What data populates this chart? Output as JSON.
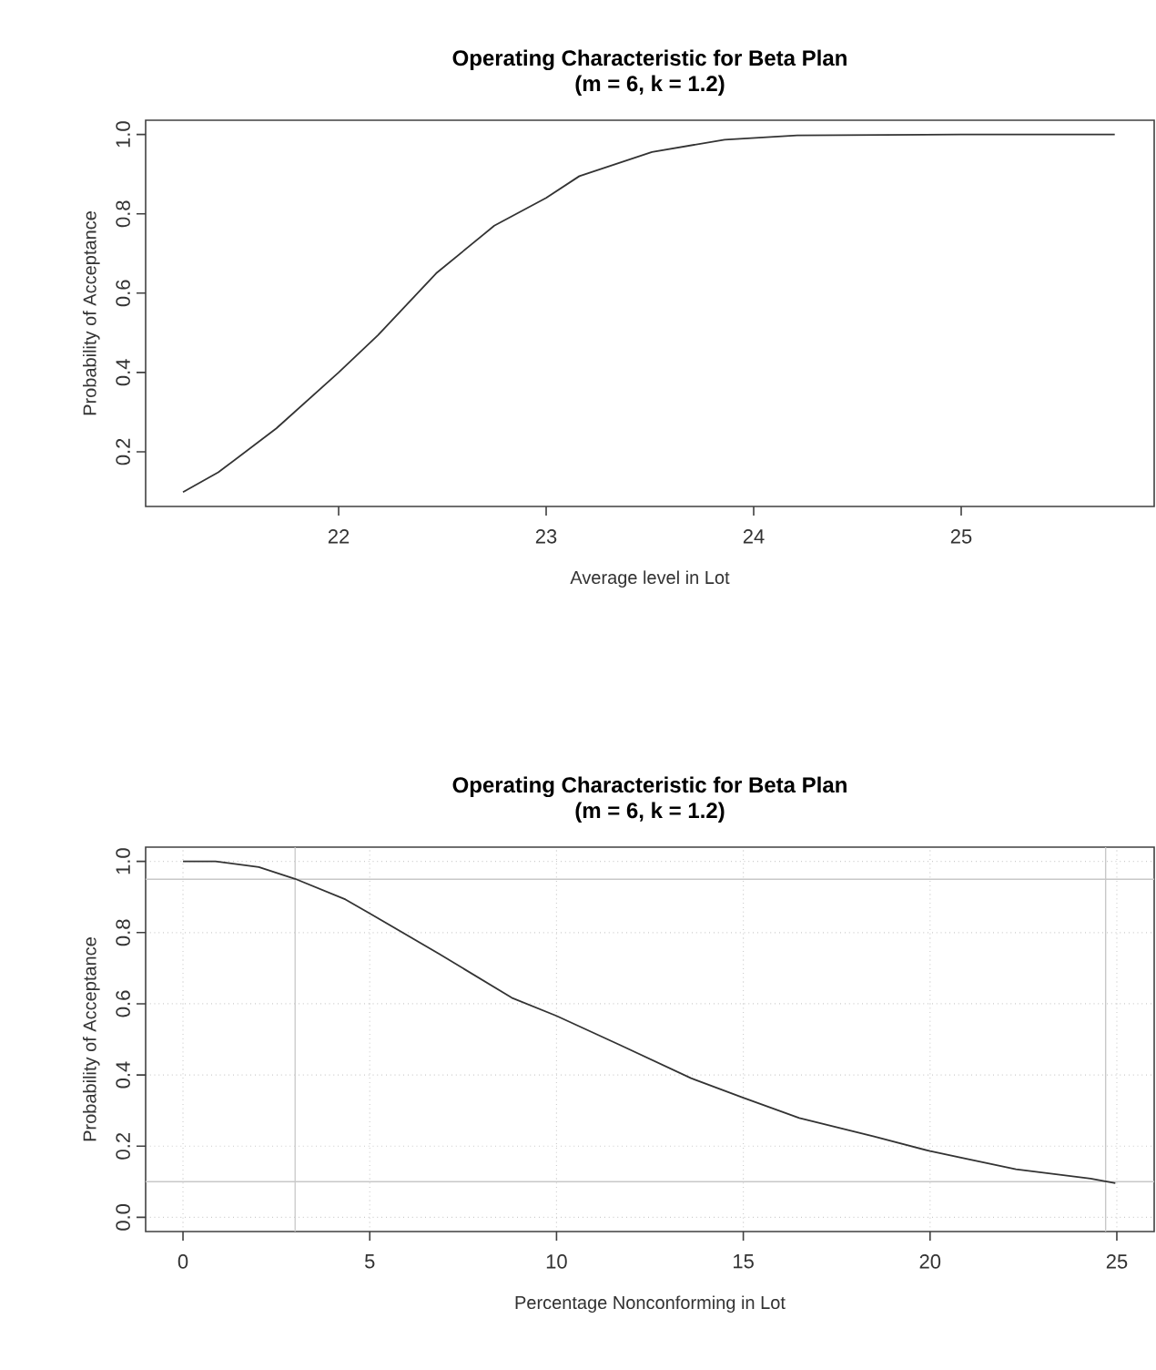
{
  "chart_data": [
    {
      "type": "line",
      "title": "Operating Characteristic for Beta Plan",
      "subtitle": "(m = 6, k = 1.2)",
      "xlabel": "Average level in Lot",
      "ylabel": "Probability of Acceptance",
      "xlim": [
        21.07,
        25.93
      ],
      "ylim": [
        0.062,
        1.036
      ],
      "xticks": [
        22,
        23,
        24,
        25
      ],
      "yticks": [
        {
          "value": 0.2,
          "label": "0.2"
        },
        {
          "value": 0.4,
          "label": "0.4"
        },
        {
          "value": 0.6,
          "label": "0.6"
        },
        {
          "value": 0.8,
          "label": "0.8"
        },
        {
          "value": 1.0,
          "label": "1.0"
        }
      ],
      "grid": false,
      "series": [
        {
          "color": "#333333",
          "x": [
            21.25,
            21.42,
            21.7,
            22.0,
            22.19,
            22.47,
            22.75,
            23.0,
            23.16,
            23.51,
            23.86,
            24.21,
            25.0,
            25.74
          ],
          "values": [
            0.098,
            0.148,
            0.259,
            0.4,
            0.494,
            0.65,
            0.77,
            0.84,
            0.895,
            0.956,
            0.987,
            0.998,
            1.0,
            1.0
          ]
        }
      ]
    },
    {
      "type": "line",
      "title": "Operating Characteristic for Beta Plan",
      "subtitle": "(m = 6, k = 1.2)",
      "xlabel": "Percentage Nonconforming in Lot",
      "ylabel": "Probability of Acceptance",
      "xlim": [
        -1,
        26
      ],
      "ylim": [
        -0.04,
        1.04
      ],
      "xticks": [
        0,
        5,
        10,
        15,
        20,
        25
      ],
      "yticks": [
        {
          "value": 0,
          "label": "0.0"
        },
        {
          "value": 0.2,
          "label": "0.2"
        },
        {
          "value": 0.4,
          "label": "0.4"
        },
        {
          "value": 0.6,
          "label": "0.6"
        },
        {
          "value": 0.8,
          "label": "0.8"
        },
        {
          "value": 1.0,
          "label": "1.0"
        }
      ],
      "grid": true,
      "ref_lines": [
        {
          "axis": "y",
          "value": 0.95,
          "color": "#c8c8c8"
        },
        {
          "axis": "y",
          "value": 0.1,
          "color": "#c8c8c8"
        },
        {
          "axis": "x",
          "value": 3,
          "color": "#c8c8c8"
        },
        {
          "axis": "x",
          "value": 24.7,
          "color": "#c8c8c8"
        }
      ],
      "series": [
        {
          "color": "#333333",
          "x": [
            0,
            0.87,
            2.03,
            3.0,
            4.35,
            5.03,
            6.86,
            8.8,
            10.0,
            11.7,
            13.6,
            15.0,
            16.5,
            18.5,
            20.0,
            22.3,
            24.3,
            24.96
          ],
          "values": [
            1.0,
            1.0,
            0.984,
            0.951,
            0.893,
            0.852,
            0.74,
            0.617,
            0.566,
            0.484,
            0.391,
            0.336,
            0.279,
            0.227,
            0.186,
            0.135,
            0.109,
            0.096
          ]
        }
      ]
    }
  ]
}
